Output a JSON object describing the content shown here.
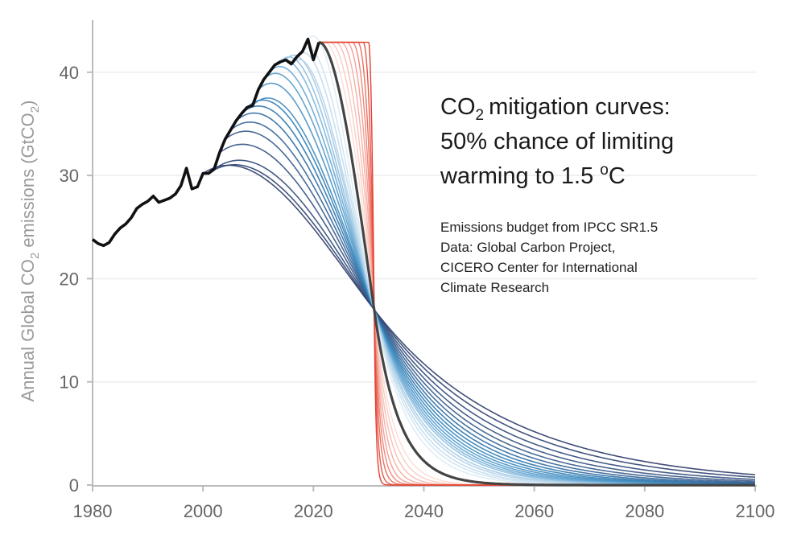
{
  "chart_data": {
    "type": "line",
    "title_lines": [
      "CO",
      "mitigation curves:",
      "50% chance of limiting",
      "warming to 1.5 ",
      "C"
    ],
    "title_sub": "2",
    "title_sup": "o",
    "notes": [
      "Emissions budget from IPCC SR1.5",
      "Data: Global Carbon Project,",
      "CICERO Center for International",
      "Climate Research"
    ],
    "ylabel_parts": [
      "Annual Global CO",
      "2",
      " emissions (GtCO",
      "2",
      ")"
    ],
    "xlim": [
      1980,
      2100
    ],
    "ylim": [
      0,
      45
    ],
    "x_ticks": [
      "1980",
      "2000",
      "2020",
      "2040",
      "2060",
      "2080",
      "2100"
    ],
    "y_ticks": [
      "0",
      "10",
      "20",
      "30",
      "40"
    ],
    "grid": "horizontal, faint",
    "historical": {
      "color": "#111111",
      "x": [
        1980,
        1981,
        1982,
        1983,
        1984,
        1985,
        1986,
        1987,
        1988,
        1989,
        1990,
        1991,
        1992,
        1993,
        1994,
        1995,
        1996,
        1997,
        1998,
        1999,
        2000,
        2001,
        2002,
        2003,
        2004,
        2005,
        2006,
        2007,
        2008,
        2009,
        2010,
        2011,
        2012,
        2013,
        2014,
        2015,
        2016,
        2017,
        2018,
        2019,
        2020,
        2021
      ],
      "y": [
        23.8,
        23.4,
        23.2,
        23.5,
        24.3,
        24.9,
        25.3,
        25.9,
        26.8,
        27.2,
        27.5,
        28.0,
        27.4,
        27.6,
        27.8,
        28.2,
        29.0,
        30.7,
        28.7,
        28.9,
        30.2,
        30.2,
        30.6,
        32.2,
        33.5,
        34.4,
        35.3,
        36.0,
        36.6,
        36.8,
        38.3,
        39.3,
        40.0,
        40.7,
        41.0,
        41.2,
        40.8,
        41.5,
        42.0,
        43.2,
        41.2,
        42.9
      ]
    },
    "common_point": {
      "year": 2031,
      "value": 17
    },
    "central_curve": {
      "start_year": 2021,
      "start_value": 42.9,
      "decay_rate": 0.22,
      "color": "#444444"
    },
    "early_start_curves": {
      "palette": [
        "#2b3a68",
        "#36598a",
        "#2a7ab3",
        "#5aa0cf",
        "#a8cde6",
        "#dcebf5"
      ],
      "start_years": [
        2000,
        2001,
        2002,
        2003,
        2004,
        2005,
        2006,
        2007,
        2008,
        2009,
        2010,
        2011,
        2012,
        2013,
        2014,
        2015,
        2016,
        2017,
        2018,
        2019
      ],
      "decay_rates": [
        0.041,
        0.045,
        0.05,
        0.055,
        0.06,
        0.065,
        0.07,
        0.075,
        0.08,
        0.085,
        0.09,
        0.095,
        0.1,
        0.105,
        0.11,
        0.118,
        0.125,
        0.135,
        0.145,
        0.16
      ]
    },
    "late_start_curves": {
      "palette": [
        "#fcdcd4",
        "#f4a095",
        "#e2402f"
      ],
      "start_value": 42.9,
      "start_years": [
        2022,
        2023,
        2024,
        2025,
        2026,
        2027,
        2028,
        2029,
        2030
      ],
      "decay_rates": [
        0.3,
        0.36,
        0.44,
        0.55,
        0.7,
        0.9,
        1.2,
        1.8,
        3.0
      ]
    }
  }
}
